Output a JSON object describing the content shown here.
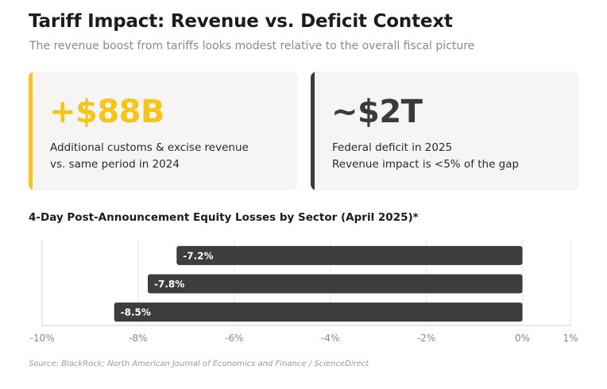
{
  "header": {
    "title": "Tariff Impact: Revenue vs. Deficit Context",
    "subtitle": "The revenue boost from tariffs looks modest relative to the overall fiscal picture"
  },
  "cards": [
    {
      "value": "+$88B",
      "line1": "Additional customs & excise revenue",
      "line2": "vs. same period in 2024",
      "accent_color": "#f5c518",
      "value_color": "#f5c518"
    },
    {
      "value": "~$2T",
      "line1": "Federal deficit in 2025",
      "line2": "Revenue impact is <5% of the gap",
      "accent_color": "#3a3a3a",
      "value_color": "#3a3a3a"
    }
  ],
  "chart_data": {
    "type": "bar",
    "orientation": "horizontal",
    "title": "4-Day Post-Announcement Equity Losses by Sector (April 2025)*",
    "values": [
      -7.2,
      -7.8,
      -8.5
    ],
    "data_labels": [
      "-7.2%",
      "-7.8%",
      "-8.5%"
    ],
    "xlim": [
      -10,
      1
    ],
    "xticks": [
      -10,
      -8,
      -6,
      -4,
      -2,
      0,
      1
    ],
    "xtick_labels": [
      "-10%",
      "-8%",
      "-6%",
      "-4%",
      "-2%",
      "0%",
      "1%"
    ],
    "bar_color": "#3d3d3d",
    "grid": true
  },
  "footer": {
    "source": "Source: BlackRock; North American Journal of Economics and Finance / ScienceDirect"
  }
}
